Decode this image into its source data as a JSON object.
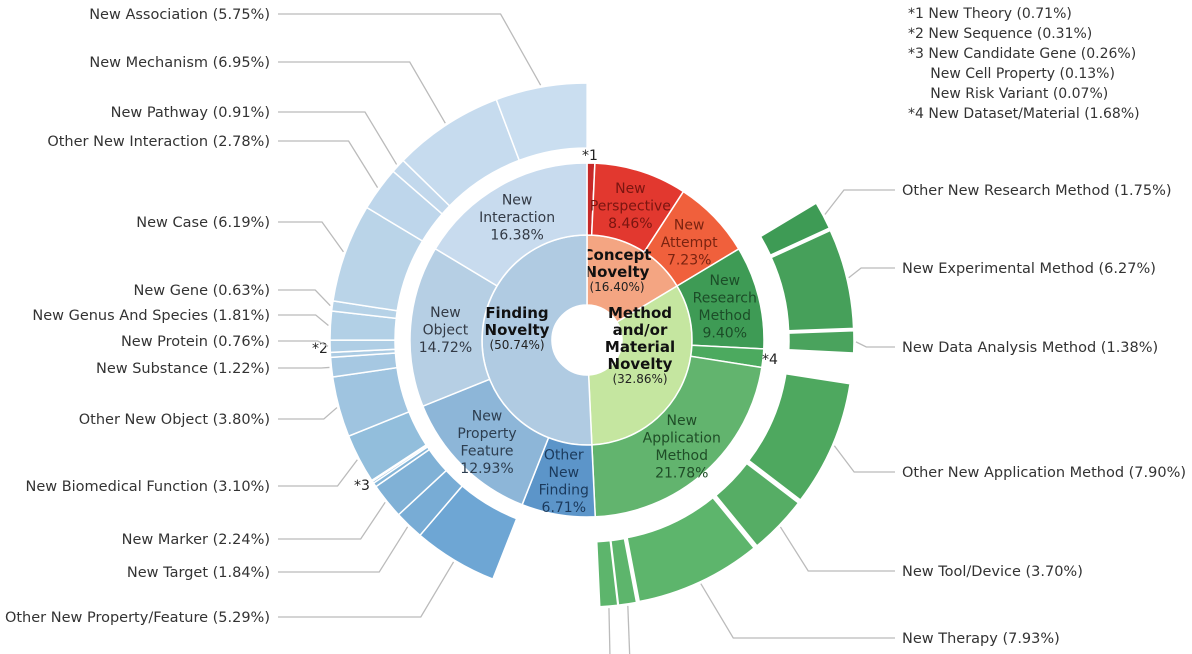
{
  "chart_data": {
    "type": "sunburst",
    "unit": "%",
    "categories": [
      {
        "name": "Concept Novelty",
        "value": 16.4,
        "color": "#f4a582",
        "lines": [
          "Concept",
          "Novelty"
        ],
        "value_text": "(16.40%)",
        "children": [
          {
            "name": "New Theory",
            "value": 0.71,
            "color": "#c62828",
            "marker": "*1",
            "children": []
          },
          {
            "name": "New Perspective",
            "value": 8.46,
            "color": "#e2382f",
            "text_color": "#7a1510",
            "children": []
          },
          {
            "name": "New Attempt",
            "value": 7.23,
            "color": "#f0603c",
            "text_color": "#7a2310",
            "children": []
          }
        ]
      },
      {
        "name": "Method and/or Material Novelty",
        "value": 32.86,
        "color": "#c5e6a0",
        "lines": [
          "Method",
          "and/or",
          "Material",
          "Novelty"
        ],
        "value_text": "(32.86%)",
        "children": [
          {
            "name": "New Research Method",
            "value": 9.4,
            "color": "#3e9b55",
            "text_color": "#1c4d28",
            "children": [
              {
                "label": "Other New Research Method (1.75%)",
                "value": 1.75,
                "color": "#3e9b55"
              },
              {
                "label": "New Experimental Method (6.27%)",
                "value": 6.27,
                "color": "#46a05a"
              },
              {
                "label": "New Data Analysis Method (1.38%)",
                "value": 1.38,
                "color": "#4aa35d"
              }
            ]
          },
          {
            "name": "New Dataset/Material",
            "value": 1.68,
            "color": "#4caa5f",
            "marker": "*4",
            "children": []
          },
          {
            "name": "New Application Method",
            "value": 21.78,
            "color": "#62b46e",
            "text_color": "#1f4d27",
            "children": [
              {
                "label": "Other New Application Method (7.90%)",
                "value": 7.9,
                "color": "#4ea85f"
              },
              {
                "label": "New Tool/Device (3.70%)",
                "value": 3.7,
                "color": "#56ad65"
              },
              {
                "label": "New Therapy (7.93%)",
                "value": 7.93,
                "color": "#5db56c"
              },
              {
                "label": "",
                "value": 1.13,
                "color": "#5db56c"
              },
              {
                "label": "",
                "value": 1.12,
                "color": "#5db56c"
              }
            ]
          }
        ]
      },
      {
        "name": "Finding Novelty",
        "value": 50.74,
        "color": "#b0cbe2",
        "lines": [
          "Finding",
          "Novelty"
        ],
        "value_text": "(50.74%)",
        "children": [
          {
            "name": "Other New Finding",
            "value": 6.71,
            "color": "#5c95c9",
            "text_color": "#1b3a5c",
            "children": []
          },
          {
            "name": "New Property Feature",
            "value": 12.93,
            "color": "#8db6d8",
            "text_color": "#2d3e50",
            "children": [
              {
                "label": "Other New Property/Feature (5.29%)",
                "value": 5.29,
                "color": "#6ea6d4"
              },
              {
                "label": "New Target (1.84%)",
                "value": 1.84,
                "color": "#78acd5"
              },
              {
                "label": "New Marker (2.24%)",
                "value": 2.24,
                "color": "#80b1d6"
              },
              {
                "label": "",
                "value": 0.26,
                "color": "#86b6d8",
                "marker": "*3"
              },
              {
                "label": "",
                "value": 0.13,
                "color": "#8ab9da"
              },
              {
                "label": "",
                "value": 0.07,
                "color": "#8ebbdb"
              },
              {
                "label": "New Biomedical Function (3.10%)",
                "value": 3.1,
                "color": "#92bedc"
              }
            ]
          },
          {
            "name": "New Object",
            "value": 14.72,
            "color": "#b6cfe4",
            "text_color": "#333a45",
            "children": [
              {
                "label": "Other New Object (3.80%)",
                "value": 3.8,
                "color": "#9fc4e0"
              },
              {
                "label": "New Substance (1.22%)",
                "value": 1.22,
                "color": "#a6c8e2"
              },
              {
                "label": "",
                "value": 0.31,
                "color": "#abcbe3",
                "marker": "*2"
              },
              {
                "label": "New Protein (0.76%)",
                "value": 0.76,
                "color": "#afcee5"
              },
              {
                "label": "New Genus And Species (1.81%)",
                "value": 1.81,
                "color": "#b2d0e6"
              },
              {
                "label": "New Gene (0.63%)",
                "value": 0.63,
                "color": "#b6d2e7"
              },
              {
                "label": "New Case (6.19%)",
                "value": 6.19,
                "color": "#bad4e8"
              }
            ]
          },
          {
            "name": "New Interaction",
            "value": 16.38,
            "color": "#c8dbee",
            "text_color": "#333a45",
            "children": [
              {
                "label": "Other New Interaction (2.78%)",
                "value": 2.78,
                "color": "#bed6eb"
              },
              {
                "label": "New Pathway (0.91%)",
                "value": 0.91,
                "color": "#c2d8ec"
              },
              {
                "label": "New Mechanism (6.95%)",
                "value": 6.95,
                "color": "#c6dbee"
              },
              {
                "label": "New Association (5.75%)",
                "value": 5.75,
                "color": "#cadef0"
              }
            ]
          }
        ]
      }
    ],
    "notes": [
      "*1 New Theory (0.71%)",
      "*2 New Sequence (0.31%)",
      "*3 New Candidate Gene (0.26%)",
      "     New Cell Property (0.13%)",
      "     New Risk Variant (0.07%)",
      "*4 New Dataset/Material (1.68%)"
    ]
  }
}
